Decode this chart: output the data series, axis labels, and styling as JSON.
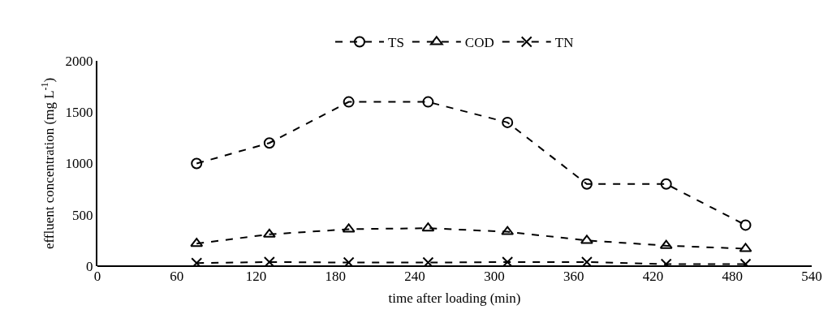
{
  "chart_data": {
    "type": "line",
    "xlabel": "time after loading (min)",
    "ylabel": "effluent concentration (mg L$^{-1}$)",
    "x": [
      75,
      130,
      190,
      250,
      310,
      370,
      430,
      490
    ],
    "series": [
      {
        "name": "TS",
        "color": "#000000",
        "marker": "circle",
        "values": [
          1000,
          1200,
          1600,
          1600,
          1400,
          800,
          800,
          400
        ]
      },
      {
        "name": "COD",
        "color": "#000000",
        "marker": "triangle",
        "values": [
          220,
          310,
          360,
          370,
          335,
          250,
          200,
          170
        ]
      },
      {
        "name": "TN",
        "color": "#000000",
        "marker": "cross",
        "values": [
          30,
          40,
          35,
          35,
          40,
          40,
          20,
          20
        ]
      }
    ],
    "xlim": [
      0,
      540
    ],
    "xticks": [
      0,
      60,
      120,
      180,
      240,
      300,
      360,
      420,
      480,
      540
    ],
    "ylim": [
      0,
      2000
    ],
    "yticks": [
      0,
      500,
      1000,
      1500,
      2000
    ],
    "grid": false,
    "legend": "top",
    "line_style": "dashed"
  }
}
